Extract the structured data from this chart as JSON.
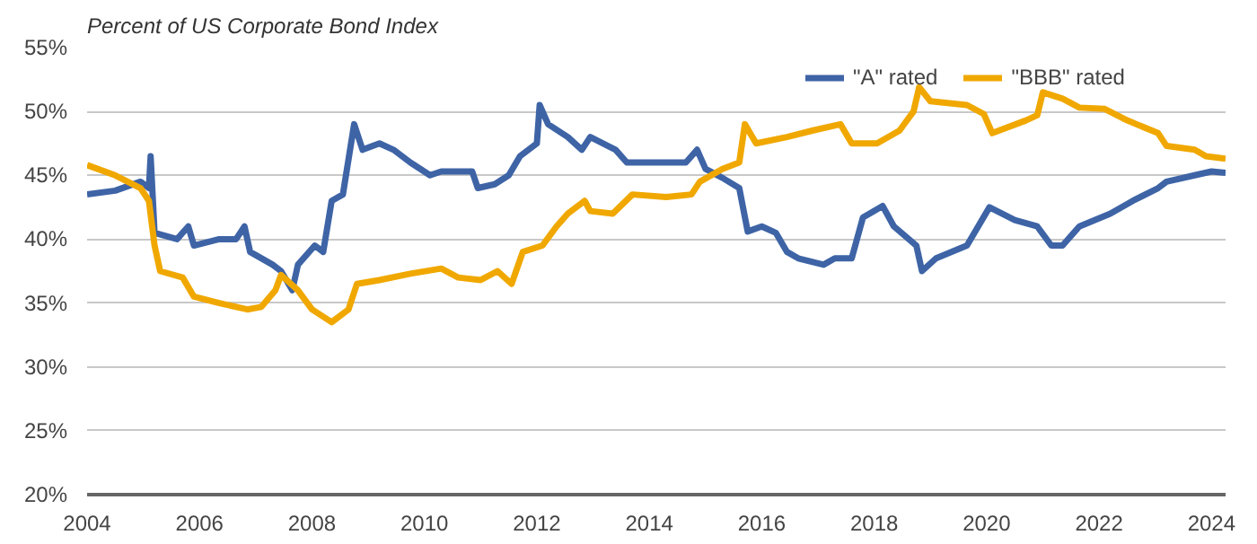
{
  "chart_data": {
    "type": "line",
    "title": "Percent of US Corporate Bond Index",
    "xlim": [
      2004,
      2024.25
    ],
    "xticks": [
      2004,
      2006,
      2008,
      2010,
      2012,
      2014,
      2016,
      2018,
      2020,
      2022,
      2024
    ],
    "ylim": [
      20,
      55
    ],
    "yticks": [
      {
        "value": 20,
        "label": "20%"
      },
      {
        "value": 25,
        "label": "25%"
      },
      {
        "value": 30,
        "label": "30%"
      },
      {
        "value": 35,
        "label": "35%"
      },
      {
        "value": 40,
        "label": "40%"
      },
      {
        "value": 45,
        "label": "45%"
      },
      {
        "value": 50,
        "label": "50%"
      },
      {
        "value": 55,
        "label": "55%"
      }
    ],
    "grid": "y",
    "legend": "top right",
    "line_style": "solid",
    "marker": "none",
    "series": [
      {
        "name": "\"A\" rated",
        "color": "#3e64a6",
        "x": [
          2004.0,
          2004.5,
          2004.95,
          2005.1,
          2005.13,
          2005.2,
          2005.6,
          2005.8,
          2005.9,
          2006.35,
          2006.65,
          2006.8,
          2006.9,
          2007.3,
          2007.45,
          2007.65,
          2007.75,
          2008.05,
          2008.2,
          2008.35,
          2008.55,
          2008.75,
          2008.9,
          2009.2,
          2009.45,
          2009.75,
          2010.1,
          2010.3,
          2010.85,
          2010.95,
          2011.25,
          2011.5,
          2011.7,
          2012.0,
          2012.05,
          2012.2,
          2012.55,
          2012.8,
          2012.95,
          2013.4,
          2013.6,
          2014.65,
          2014.85,
          2015.0,
          2015.3,
          2015.6,
          2015.75,
          2016.0,
          2016.25,
          2016.45,
          2016.65,
          2017.1,
          2017.3,
          2017.6,
          2017.8,
          2018.15,
          2018.35,
          2018.75,
          2018.85,
          2019.1,
          2019.65,
          2020.05,
          2020.5,
          2020.9,
          2021.15,
          2021.35,
          2021.65,
          2022.2,
          2022.6,
          2023.05,
          2023.2,
          2023.7,
          2024.0,
          2024.25
        ],
        "values": [
          43.5,
          43.8,
          44.5,
          44.0,
          46.5,
          40.5,
          40.0,
          41.0,
          39.5,
          40.0,
          40.0,
          41.0,
          39.0,
          38.0,
          37.5,
          36.0,
          38.0,
          39.5,
          39.0,
          43.0,
          43.5,
          49.0,
          47.0,
          47.5,
          47.0,
          46.0,
          45.0,
          45.3,
          45.3,
          44.0,
          44.3,
          45.0,
          46.5,
          47.5,
          50.5,
          49.0,
          48.0,
          47.0,
          48.0,
          47.0,
          46.0,
          46.0,
          47.0,
          45.5,
          44.8,
          44.0,
          40.6,
          41.0,
          40.5,
          39.0,
          38.5,
          38.0,
          38.5,
          38.5,
          41.7,
          42.6,
          41.0,
          39.5,
          37.5,
          38.5,
          39.5,
          42.5,
          41.5,
          41.0,
          39.5,
          39.5,
          41.0,
          42.0,
          43.0,
          44.0,
          44.5,
          45.0,
          45.3,
          45.2
        ]
      },
      {
        "name": "\"BBB\" rated",
        "color": "#f0a800",
        "x": [
          2004.0,
          2004.5,
          2004.95,
          2005.1,
          2005.2,
          2005.3,
          2005.7,
          2005.9,
          2006.35,
          2006.85,
          2007.1,
          2007.35,
          2007.45,
          2007.75,
          2008.0,
          2008.35,
          2008.65,
          2008.8,
          2009.2,
          2009.75,
          2010.3,
          2010.6,
          2011.0,
          2011.3,
          2011.55,
          2011.75,
          2012.1,
          2012.35,
          2012.55,
          2012.85,
          2012.95,
          2013.35,
          2013.7,
          2014.3,
          2014.75,
          2014.9,
          2015.3,
          2015.6,
          2015.7,
          2015.9,
          2016.45,
          2016.9,
          2017.4,
          2017.6,
          2018.05,
          2018.45,
          2018.7,
          2018.8,
          2019.0,
          2019.65,
          2019.95,
          2020.1,
          2020.7,
          2020.9,
          2021.0,
          2021.35,
          2021.65,
          2022.1,
          2022.5,
          2023.05,
          2023.2,
          2023.7,
          2023.9,
          2024.25
        ],
        "values": [
          45.8,
          45.0,
          44.0,
          43.0,
          39.5,
          37.5,
          37.0,
          35.5,
          35.0,
          34.5,
          34.7,
          36.0,
          37.2,
          36.0,
          34.5,
          33.5,
          34.5,
          36.5,
          36.8,
          37.3,
          37.7,
          37.0,
          36.8,
          37.5,
          36.5,
          39.0,
          39.5,
          41.0,
          42.0,
          43.0,
          42.2,
          42.0,
          43.5,
          43.3,
          43.5,
          44.5,
          45.5,
          46.0,
          49.0,
          47.5,
          48.0,
          48.5,
          49.0,
          47.5,
          47.5,
          48.5,
          50.0,
          51.9,
          50.8,
          50.5,
          49.8,
          48.3,
          49.3,
          49.7,
          51.5,
          51.0,
          50.3,
          50.2,
          49.3,
          48.3,
          47.3,
          47.0,
          46.5,
          46.3
        ]
      }
    ]
  }
}
